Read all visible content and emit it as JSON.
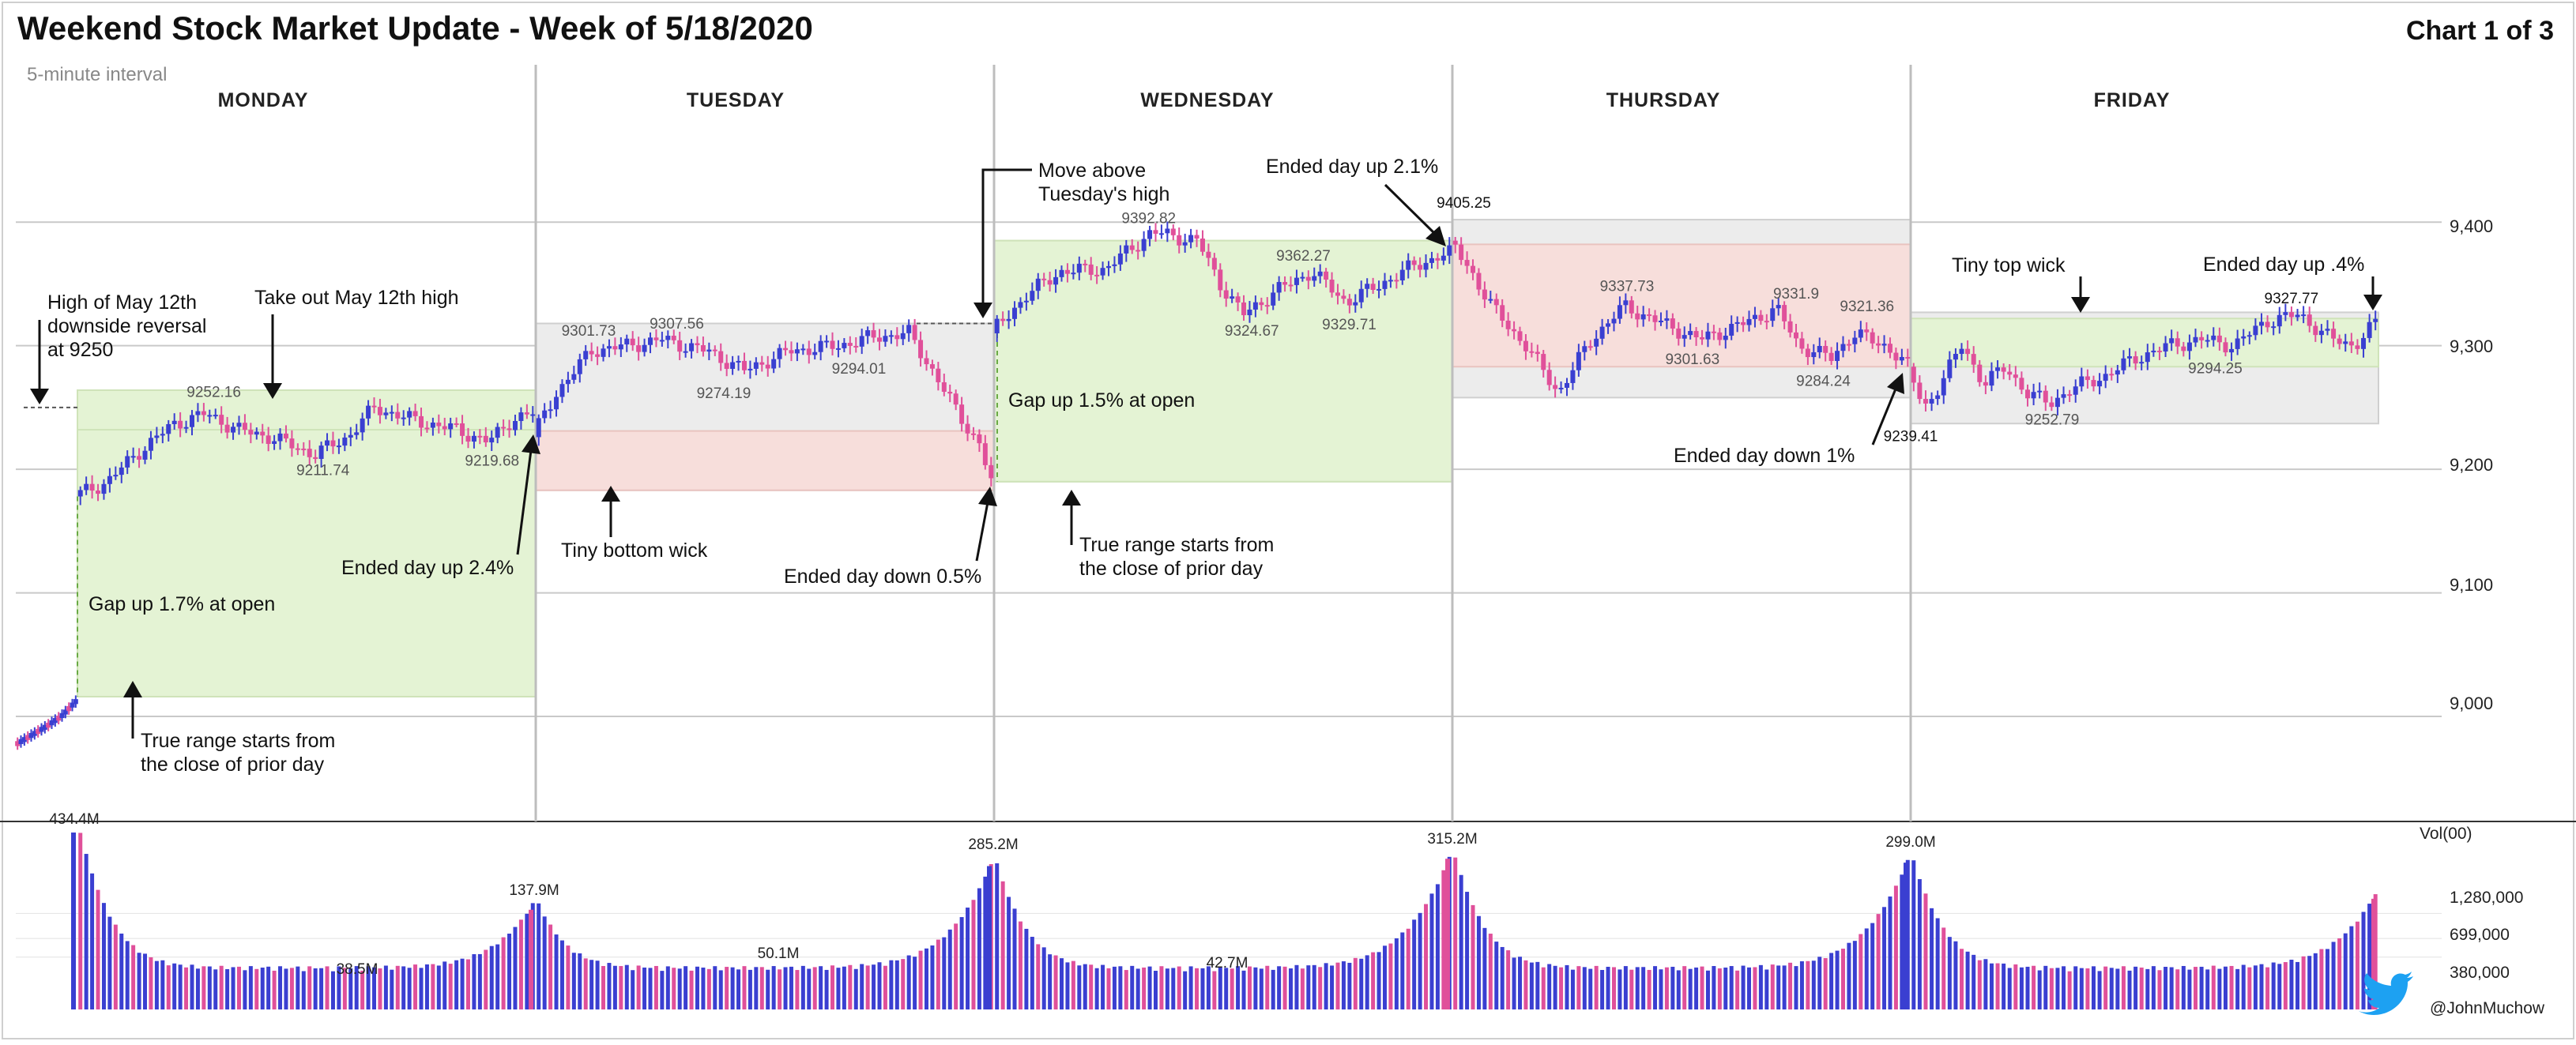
{
  "title": "Weekend Stock Market Update - Week of 5/18/2020",
  "chart_label": "Chart 1 of 3",
  "interval_label": "5-minute interval",
  "credit": "@JohnMuchow",
  "twitter_icon": "twitter-bird-icon",
  "colors": {
    "up": "#3a3fd1",
    "down": "#e0509a",
    "green_box": "#e4f3d4",
    "red_box": "#f7dedb",
    "gray_box": "#ececec",
    "arrow": "#111111"
  },
  "chart_data": {
    "type": "candlestick",
    "interval": "5-minute interval",
    "price_axis": {
      "ticks": [
        9000,
        9100,
        9200,
        9300,
        9400
      ],
      "tick_labels": [
        "9,000",
        "9,100",
        "9,200",
        "9,300",
        "9,400"
      ],
      "ylim": [
        8915,
        9535
      ]
    },
    "volume_axis": {
      "label": "Vol(00)",
      "ticks": [
        380000,
        699000,
        1280000
      ],
      "tick_labels": [
        "380,000",
        "699,000",
        "1,280,000"
      ],
      "ylim": [
        0,
        4500000
      ]
    },
    "days": [
      {
        "name": "MONDAY",
        "start": 9178,
        "end": 9240,
        "points": [
          [
            0,
            9178
          ],
          [
            6,
            9190
          ],
          [
            12,
            9215
          ],
          [
            18,
            9236
          ],
          [
            24,
            9245
          ],
          [
            30,
            9232
          ],
          [
            36,
            9226
          ],
          [
            44,
            9212
          ],
          [
            50,
            9226
          ],
          [
            55,
            9250
          ],
          [
            62,
            9240
          ],
          [
            70,
            9232
          ],
          [
            76,
            9222
          ],
          [
            80,
            9240
          ],
          [
            84,
            9245
          ]
        ],
        "price_labels": [
          {
            "text": "9252.16",
            "value": 9252.16,
            "t": 25,
            "pos": "above"
          },
          {
            "text": "9211.74",
            "value": 9211.74,
            "t": 45,
            "pos": "below"
          },
          {
            "text": "9219.68",
            "value": 9219.68,
            "t": 76,
            "pos": "below"
          }
        ],
        "true_range_box": {
          "low": 9016,
          "high": 9264,
          "style": "green"
        },
        "body_box": {
          "low": 9016,
          "high": 9232,
          "style": "green"
        },
        "volume_peak": {
          "value": 4344000,
          "label": "434.4M",
          "t": 1
        },
        "volume_trough_label": {
          "label": "38.5M",
          "t": 55
        },
        "volume_mid_peak": {
          "value": 1379000,
          "label": "137.9M",
          "t": 82
        }
      },
      {
        "name": "TUESDAY",
        "start": 9226,
        "end": 9190,
        "points": [
          [
            0,
            9226
          ],
          [
            4,
            9262
          ],
          [
            10,
            9296
          ],
          [
            16,
            9300
          ],
          [
            22,
            9305
          ],
          [
            30,
            9295
          ],
          [
            36,
            9280
          ],
          [
            44,
            9296
          ],
          [
            52,
            9300
          ],
          [
            58,
            9307
          ],
          [
            64,
            9310
          ],
          [
            68,
            9280
          ],
          [
            72,
            9248
          ],
          [
            76,
            9220
          ],
          [
            78,
            9190
          ]
        ],
        "price_labels": [
          {
            "text": "9301.73",
            "value": 9301.73,
            "t": 9,
            "pos": "above"
          },
          {
            "text": "9307.56",
            "value": 9307.56,
            "t": 24,
            "pos": "above"
          },
          {
            "text": "9274.19",
            "value": 9274.19,
            "t": 32,
            "pos": "below"
          },
          {
            "text": "9294.01",
            "value": 9294.01,
            "t": 55,
            "pos": "below"
          }
        ],
        "true_range_box": {
          "low": 9183,
          "high": 9318,
          "style": "gray"
        },
        "body_box": {
          "low": 9183,
          "high": 9231,
          "style": "red"
        },
        "volume_peak": {
          "value": 1379000,
          "label": "",
          "t": 0
        },
        "volume_trough_label": {
          "label": "50.1M",
          "t": 40
        },
        "volume_mid_peak": {
          "value": 2852000,
          "label": "285.2M",
          "t": 84
        }
      },
      {
        "name": "WEDNESDAY",
        "start": 9310,
        "end": 9375,
        "points": [
          [
            0,
            9310
          ],
          [
            6,
            9340
          ],
          [
            12,
            9360
          ],
          [
            20,
            9362
          ],
          [
            28,
            9392
          ],
          [
            36,
            9385
          ],
          [
            40,
            9350
          ],
          [
            44,
            9325
          ],
          [
            50,
            9345
          ],
          [
            56,
            9360
          ],
          [
            62,
            9335
          ],
          [
            68,
            9350
          ],
          [
            74,
            9365
          ],
          [
            80,
            9375
          ]
        ],
        "price_labels": [
          {
            "text": "9392.82",
            "value": 9392.82,
            "t": 27,
            "pos": "above"
          },
          {
            "text": "9362.27",
            "value": 9362.27,
            "t": 54,
            "pos": "above"
          },
          {
            "text": "9324.67",
            "value": 9324.67,
            "t": 45,
            "pos": "below"
          },
          {
            "text": "9329.71",
            "value": 9329.71,
            "t": 62,
            "pos": "below"
          },
          {
            "text": "9405.25",
            "value": 9405.25,
            "t": 82,
            "pos": "above-dark"
          }
        ],
        "true_range_box": {
          "low": 9190,
          "high": 9385,
          "style": "green"
        },
        "body_box": {
          "low": 9190,
          "high": 9385,
          "style": "green"
        },
        "volume_peak": {
          "value": 2852000,
          "label": "",
          "t": 0
        },
        "volume_trough_label": {
          "label": "42.7M",
          "t": 45
        },
        "volume_mid_peak": {
          "value": 3152000,
          "label": "315.2M",
          "t": 84
        }
      },
      {
        "name": "THURSDAY",
        "start": 9385,
        "end": 9283,
        "points": [
          [
            0,
            9385
          ],
          [
            4,
            9360
          ],
          [
            8,
            9330
          ],
          [
            14,
            9300
          ],
          [
            20,
            9262
          ],
          [
            26,
            9305
          ],
          [
            32,
            9332
          ],
          [
            38,
            9320
          ],
          [
            46,
            9305
          ],
          [
            54,
            9318
          ],
          [
            60,
            9330
          ],
          [
            64,
            9300
          ],
          [
            70,
            9290
          ],
          [
            74,
            9310
          ],
          [
            80,
            9300
          ],
          [
            84,
            9283
          ]
        ],
        "price_labels": [
          {
            "text": "9337.73",
            "value": 9337.73,
            "t": 32,
            "pos": "above"
          },
          {
            "text": "9301.63",
            "value": 9301.63,
            "t": 44,
            "pos": "below"
          },
          {
            "text": "9331.9",
            "value": 9331.9,
            "t": 63,
            "pos": "above"
          },
          {
            "text": "9284.24",
            "value": 9284.24,
            "t": 68,
            "pos": "below"
          },
          {
            "text": "9321.36",
            "value": 9321.36,
            "t": 76,
            "pos": "above"
          }
        ],
        "true_range_box": {
          "low": 9258,
          "high": 9402,
          "style": "gray"
        },
        "body_box": {
          "low": 9283,
          "high": 9382,
          "style": "red"
        },
        "volume_peak": {
          "value": 3152000,
          "label": "",
          "t": 0
        },
        "volume_trough_label": {
          "label": "",
          "t": 0
        },
        "volume_mid_peak": {
          "value": 2990000,
          "label": "299.0M",
          "t": 84
        }
      },
      {
        "name": "FRIDAY",
        "start": 9283,
        "end": 9318,
        "points": [
          [
            0,
            9283
          ],
          [
            3,
            9248
          ],
          [
            6,
            9270
          ],
          [
            10,
            9300
          ],
          [
            14,
            9270
          ],
          [
            18,
            9282
          ],
          [
            22,
            9262
          ],
          [
            26,
            9253
          ],
          [
            30,
            9265
          ],
          [
            36,
            9275
          ],
          [
            42,
            9290
          ],
          [
            48,
            9300
          ],
          [
            54,
            9305
          ],
          [
            60,
            9300
          ],
          [
            66,
            9320
          ],
          [
            72,
            9325
          ],
          [
            78,
            9305
          ],
          [
            82,
            9300
          ],
          [
            86,
            9318
          ]
        ],
        "price_labels": [
          {
            "text": "9239.41",
            "value": 9239.41,
            "t": 0,
            "pos": "below-dark"
          },
          {
            "text": "9252.79",
            "value": 9252.79,
            "t": 26,
            "pos": "below"
          },
          {
            "text": "9294.25",
            "value": 9294.25,
            "t": 56,
            "pos": "below"
          },
          {
            "text": "9327.77",
            "value": 9327.77,
            "t": 70,
            "pos": "above-dark"
          }
        ],
        "true_range_box": {
          "low": 9237,
          "high": 9327,
          "style": "gray"
        },
        "body_box": {
          "low": 9283,
          "high": 9322,
          "style": "green"
        },
        "volume_peak": {
          "value": 2990000,
          "label": "",
          "t": 0
        },
        "volume_trough_label": {
          "label": "",
          "t": 0
        },
        "volume_mid_peak": {
          "value": 1700000,
          "label": "",
          "t": 88
        }
      }
    ],
    "prior_session": {
      "points": [
        [
          0,
          8978
        ],
        [
          6,
          8985
        ],
        [
          12,
          8992
        ],
        [
          18,
          9000
        ],
        [
          24,
          9012
        ]
      ]
    },
    "annotations": [
      {
        "id": "ann-high-may12",
        "lines": [
          "High of May 12th",
          "downside reversal",
          "at 9250"
        ]
      },
      {
        "id": "ann-take-out",
        "lines": [
          "Take out May 12th high"
        ]
      },
      {
        "id": "ann-gap-mon",
        "lines": [
          "Gap up 1.7% at open"
        ]
      },
      {
        "id": "ann-ended-mon",
        "lines": [
          "Ended day up 2.4%"
        ]
      },
      {
        "id": "ann-truerange-mon",
        "lines": [
          "True range starts from",
          "the close of prior day"
        ]
      },
      {
        "id": "ann-bottom-wick",
        "lines": [
          "Tiny bottom wick"
        ]
      },
      {
        "id": "ann-ended-tue",
        "lines": [
          "Ended day down 0.5%"
        ]
      },
      {
        "id": "ann-move-above",
        "lines": [
          "Move above",
          "Tuesday's high"
        ]
      },
      {
        "id": "ann-gap-wed",
        "lines": [
          "Gap up 1.5% at open"
        ]
      },
      {
        "id": "ann-truerange-wed",
        "lines": [
          "True range starts from",
          "the close of prior day"
        ]
      },
      {
        "id": "ann-ended-wed",
        "lines": [
          "Ended day up 2.1%"
        ]
      },
      {
        "id": "ann-ended-thu",
        "lines": [
          "Ended day down 1%"
        ]
      },
      {
        "id": "ann-top-wick",
        "lines": [
          "Tiny top wick"
        ]
      },
      {
        "id": "ann-ended-fri",
        "lines": [
          "Ended day up .4%"
        ]
      }
    ]
  }
}
